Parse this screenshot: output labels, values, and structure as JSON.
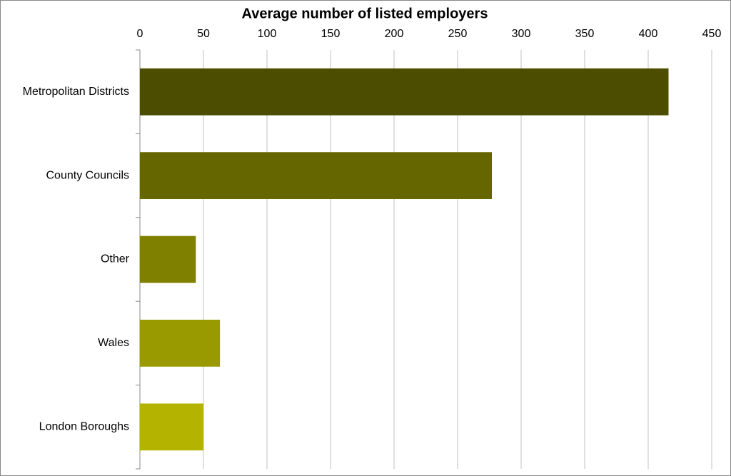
{
  "chart_data": {
    "type": "bar",
    "orientation": "horizontal",
    "title": "Average number of listed employers",
    "categories": [
      "Metropolitan Districts",
      "County Councils",
      "Other",
      "Wales",
      "London Boroughs"
    ],
    "values": [
      416,
      277,
      44,
      63,
      50
    ],
    "colors": [
      "#4d4d00",
      "#666600",
      "#808000",
      "#999900",
      "#b3b300"
    ],
    "xlim": [
      0,
      450
    ],
    "xticks": [
      0,
      50,
      100,
      150,
      200,
      250,
      300,
      350,
      400,
      450
    ],
    "grid": true
  }
}
